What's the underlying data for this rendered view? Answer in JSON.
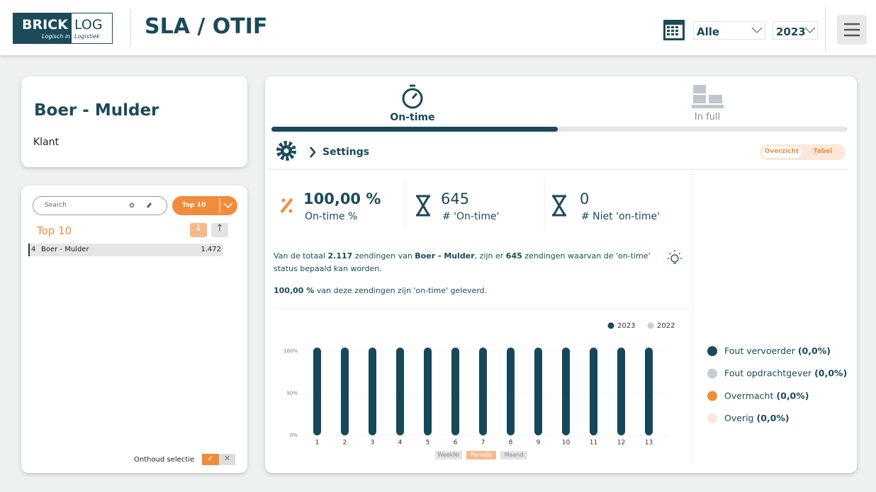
{
  "header": {
    "logo_main": "BRICK",
    "logo_sub": "LOG",
    "logo_tagline_1": "Logisch in",
    "logo_tagline_2": "Logistiek",
    "title": "SLA / OTIF",
    "filter_customer": "Alle",
    "filter_year": "2023"
  },
  "customer_card": {
    "name": "Boer - Mulder",
    "label": "Klant"
  },
  "list_panel": {
    "search_placeholder": "Search",
    "top_button": "Top 10",
    "heading": "Top 10",
    "rows": [
      {
        "rank": "4",
        "name": "Boer - Mulder",
        "value": "1.472"
      }
    ],
    "remember": "Onthoud selectie"
  },
  "tabs": [
    {
      "label": "On-time"
    },
    {
      "label": "In full"
    }
  ],
  "settings": {
    "label": "Settings",
    "toggle": [
      "Overzicht",
      "Tabel"
    ]
  },
  "kpis": [
    {
      "value": "100,00 %",
      "label": "On-time %"
    },
    {
      "value": "645",
      "label": "# 'On-time'"
    },
    {
      "value": "0",
      "label": "# Niet 'on-time'"
    }
  ],
  "summary": {
    "line1": [
      "Van de totaal ",
      "2.117",
      " zendingen van ",
      "Boer - Mulder",
      ", zijn er ",
      "645",
      " zendingen waarvan de 'on-time' status bepaald kan worden."
    ],
    "line2": [
      "100,00 %",
      " van deze zendingen zijn 'on-time' geleverd."
    ]
  },
  "chart": {
    "type": "bar",
    "legend": [
      {
        "name": "2023",
        "color": "#1b4a5a"
      },
      {
        "name": "2022",
        "color": "#c5ccd2"
      }
    ],
    "categories": [
      "1",
      "2",
      "3",
      "4",
      "5",
      "6",
      "7",
      "8",
      "9",
      "10",
      "11",
      "12",
      "13"
    ],
    "values": [
      100,
      100,
      100,
      100,
      100,
      100,
      100,
      100,
      100,
      100,
      100,
      100,
      100
    ],
    "color": "#17485a",
    "ylim": [
      0,
      100
    ],
    "yticks": [
      {
        "value": 0,
        "label": "0%"
      },
      {
        "value": 50,
        "label": "50%"
      },
      {
        "value": 100,
        "label": "100%"
      }
    ],
    "grid": true,
    "x_level_buttons": [
      "WeekNr",
      "Periode",
      "Maand"
    ]
  },
  "reasons": [
    {
      "name": "Fout vervoerder",
      "value": "(0,0%)",
      "color": "#1b4a5a"
    },
    {
      "name": "Fout opdrachtgever",
      "value": "(0,0%)",
      "color": "#c5cdd3"
    },
    {
      "name": "Overmacht",
      "value": "(0,0%)",
      "color": "#f08c3c"
    },
    {
      "name": "Overig",
      "value": "(0,0%)",
      "color": "#fde6da"
    }
  ]
}
